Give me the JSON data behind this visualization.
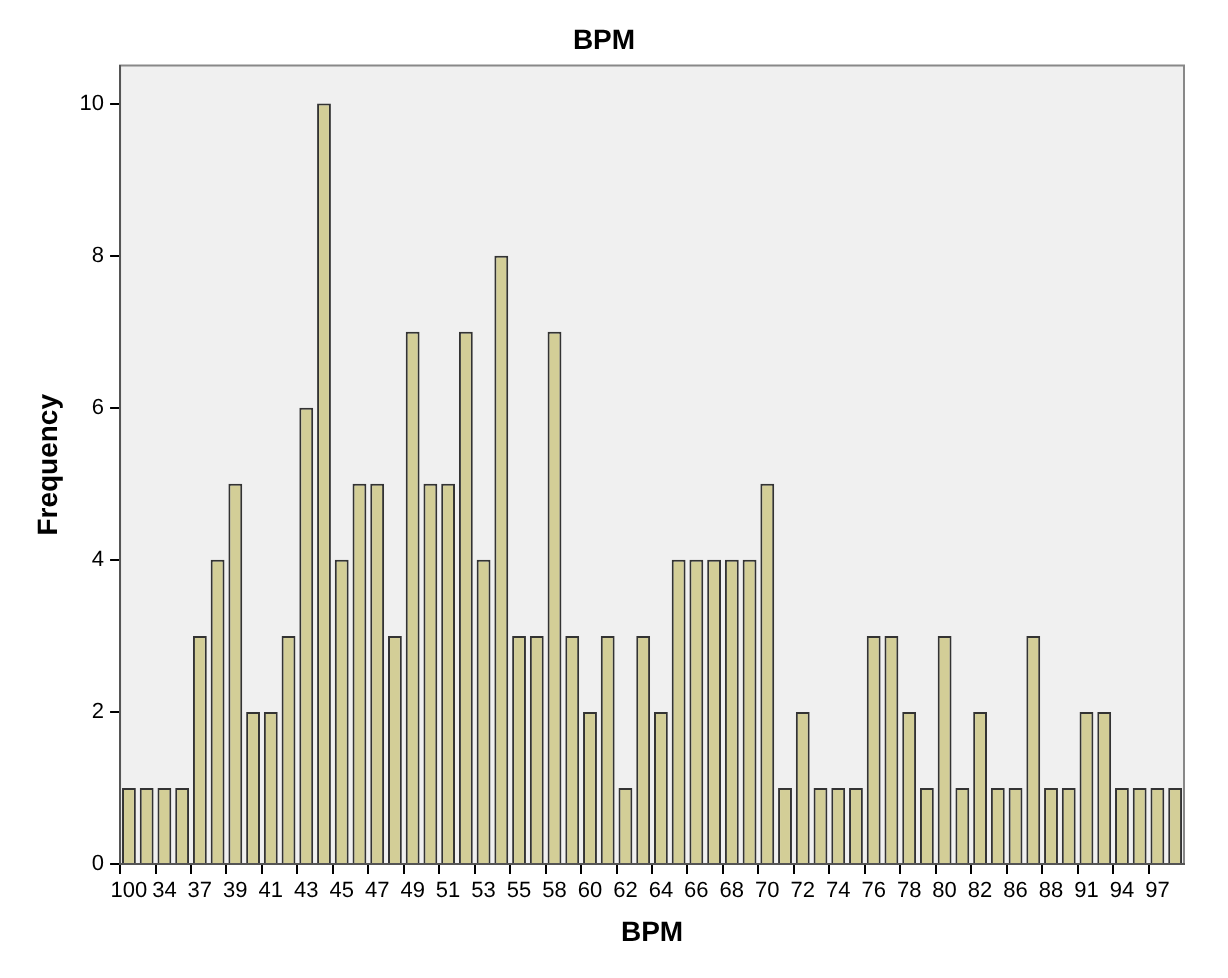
{
  "chart_data": {
    "type": "bar",
    "title": "BPM",
    "xlabel": "BPM",
    "ylabel": "Frequency",
    "categories": [
      "100",
      null,
      "34",
      null,
      "37",
      null,
      "39",
      null,
      "41",
      null,
      "43",
      null,
      "45",
      null,
      "47",
      null,
      "49",
      null,
      "51",
      null,
      "53",
      null,
      "55",
      null,
      "58",
      null,
      "60",
      null,
      "62",
      null,
      "64",
      null,
      "66",
      null,
      "68",
      null,
      "70",
      null,
      "72",
      null,
      "74",
      null,
      "76",
      null,
      "78",
      null,
      "80",
      null,
      "82",
      null,
      "86",
      null,
      "88",
      null,
      "91",
      null,
      "94",
      null,
      "97",
      null
    ],
    "values": [
      1,
      1,
      1,
      1,
      3,
      4,
      5,
      2,
      2,
      3,
      6,
      10,
      4,
      5,
      5,
      3,
      7,
      5,
      5,
      7,
      4,
      8,
      3,
      3,
      7,
      3,
      2,
      3,
      1,
      3,
      2,
      4,
      4,
      4,
      4,
      4,
      5,
      1,
      2,
      1,
      1,
      1,
      3,
      3,
      2,
      1,
      3,
      1,
      2,
      1,
      1,
      3,
      1,
      1,
      2,
      2,
      1,
      1,
      1,
      1
    ],
    "color": "#d3ce97",
    "ylim": [
      0,
      10.5
    ],
    "yticks": [
      0,
      2,
      4,
      6,
      8,
      10
    ],
    "grid": false,
    "legend": false
  }
}
